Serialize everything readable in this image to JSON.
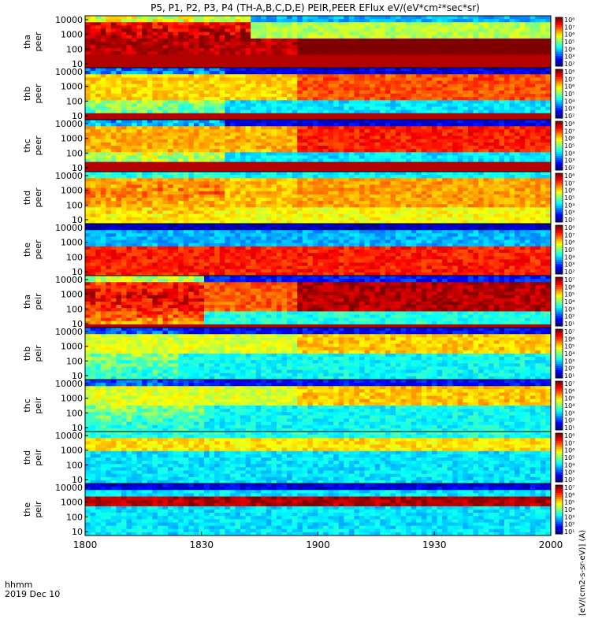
{
  "chart_data": {
    "type": "heatmap",
    "title": "P5, P1, P2, P3, P4 (TH-A,B,C,D,E) PEIR,PEER EFlux eV/(eV*cm²*sec*sr)",
    "x_time_label": "hhmm",
    "x_date_label": "2019 Dec 10",
    "x_ticks": [
      "1800",
      "1830",
      "1900",
      "1930",
      "2000"
    ],
    "y_ticks": [
      "10000",
      "1000",
      "100",
      "10"
    ],
    "colorbar_label": "[eV/(cm2-s-sr-eV)] (A)",
    "panels": [
      {
        "name": "tha peer",
        "line1": "tha",
        "line2": "peer",
        "cbar_ticks": [
          "10⁸",
          "10⁷",
          "10⁶",
          "10⁵",
          "10⁴",
          "10³",
          "10²"
        ],
        "floor_h": 0.28,
        "band_lo": 0.28,
        "band_hi": 0.55,
        "band_boost": 0.55,
        "base": 0.55,
        "burst_until": 0.35,
        "burst_level": 0.95
      },
      {
        "name": "thb peer",
        "line1": "thb",
        "line2": "peer",
        "cbar_ticks": [
          "10⁸",
          "10⁷",
          "10⁶",
          "10⁵",
          "10⁴",
          "10³",
          "10²"
        ],
        "floor_h": 0.12,
        "band_lo": 0.38,
        "band_hi": 0.85,
        "band_boost": 0.45,
        "base": 0.35,
        "burst_until": 0.3,
        "burst_level": 0.6
      },
      {
        "name": "thc peer",
        "line1": "thc",
        "line2": "peer",
        "cbar_ticks": [
          "10⁸",
          "10⁷",
          "10⁶",
          "10⁵",
          "10⁴",
          "10³",
          "10²"
        ],
        "floor_h": 0.18,
        "band_lo": 0.35,
        "band_hi": 0.85,
        "band_boost": 0.5,
        "base": 0.35,
        "burst_until": 0.3,
        "burst_level": 0.65
      },
      {
        "name": "thd peer",
        "line1": "thd",
        "line2": "peer",
        "cbar_ticks": [
          "10⁸",
          "10⁷",
          "10⁶",
          "10⁵",
          "10⁴",
          "10³",
          "10²"
        ],
        "floor_h": 0.0,
        "band_lo": 0.3,
        "band_hi": 0.9,
        "band_boost": 0.1,
        "base": 0.62,
        "burst_until": 0.3,
        "burst_level": 0.75
      },
      {
        "name": "the peer",
        "line1": "the",
        "line2": "peer",
        "cbar_ticks": [
          "10⁸",
          "10⁷",
          "10⁶",
          "10⁵",
          "10⁴",
          "10³",
          "10²"
        ],
        "floor_h": 0.0,
        "band_lo": 0.0,
        "band_hi": 0.55,
        "band_boost": 0.55,
        "base": 0.3,
        "burst_until": 0.0,
        "burst_level": 0.0
      },
      {
        "name": "tha peir",
        "line1": "tha",
        "line2": "peir",
        "cbar_ticks": [
          "10⁷",
          "10⁶",
          "10⁵",
          "10⁴",
          "10³",
          "10²",
          "10¹"
        ],
        "floor_h": 0.06,
        "band_lo": 0.3,
        "band_hi": 0.85,
        "band_boost": 0.55,
        "base": 0.4,
        "burst_until": 0.25,
        "burst_level": 0.9
      },
      {
        "name": "thb peir",
        "line1": "thb",
        "line2": "peir",
        "cbar_ticks": [
          "10⁷",
          "10⁶",
          "10⁵",
          "10⁴",
          "10³",
          "10²",
          "10¹"
        ],
        "floor_h": 0.0,
        "band_lo": 0.5,
        "band_hi": 0.85,
        "band_boost": 0.3,
        "base": 0.38,
        "burst_until": 0.2,
        "burst_level": 0.55
      },
      {
        "name": "thc peir",
        "line1": "thc",
        "line2": "peir",
        "cbar_ticks": [
          "10⁷",
          "10⁶",
          "10⁵",
          "10⁴",
          "10³",
          "10²",
          "10¹"
        ],
        "floor_h": 0.0,
        "band_lo": 0.5,
        "band_hi": 0.9,
        "band_boost": 0.3,
        "base": 0.38,
        "burst_until": 0.25,
        "burst_level": 0.55
      },
      {
        "name": "thd peir",
        "line1": "thd",
        "line2": "peir",
        "cbar_ticks": [
          "10⁸",
          "10⁷",
          "10⁶",
          "10⁵",
          "10⁴",
          "10³",
          "10²"
        ],
        "floor_h": 0.0,
        "band_lo": 0.65,
        "band_hi": 1.0,
        "band_boost": 0.3,
        "base": 0.35,
        "burst_until": 0.0,
        "burst_level": 0.0
      },
      {
        "name": "the peir",
        "line1": "the",
        "line2": "peir",
        "cbar_ticks": [
          "10⁷",
          "10⁶",
          "10⁵",
          "10⁴",
          "10³",
          "10²",
          "10¹"
        ],
        "floor_h": 0.0,
        "band_lo": 0.55,
        "band_hi": 0.72,
        "band_boost": 0.6,
        "base": 0.35,
        "burst_until": 0.0,
        "burst_level": 0.0
      }
    ]
  }
}
